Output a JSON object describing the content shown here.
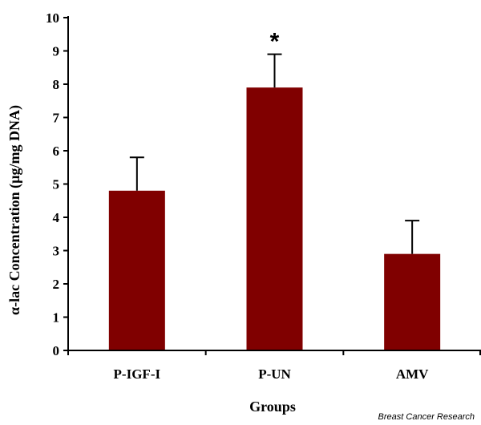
{
  "chart_data": {
    "type": "bar",
    "categories": [
      "P-IGF-I",
      "P-UN",
      "AMV"
    ],
    "values": [
      4.8,
      7.9,
      2.9
    ],
    "errors": [
      1.0,
      1.0,
      1.0
    ],
    "annotations": [
      {
        "category": "P-UN",
        "text": "*"
      }
    ],
    "title": "",
    "xlabel": "Groups",
    "ylabel": "α-lac Concentration (µg/mg DNA)",
    "ylim": [
      0,
      10
    ],
    "yticks": [
      "0",
      "1",
      "2",
      "3",
      "4",
      "5",
      "6",
      "7",
      "8",
      "9",
      "10"
    ],
    "grid": false,
    "bar_color": "#800000"
  },
  "source_note": "Breast Cancer Research"
}
